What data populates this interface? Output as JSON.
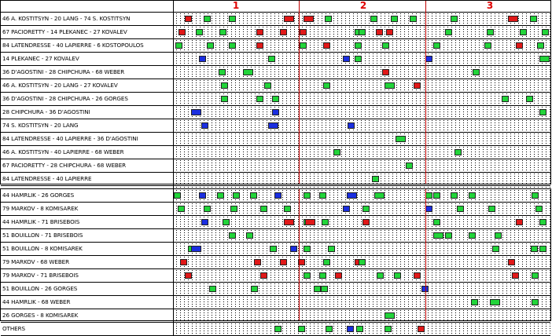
{
  "periods": [
    "1",
    "2",
    "3"
  ],
  "colors": {
    "even": "#22d43a",
    "powerplay": "#e01818",
    "shorthanded": "#1a2ee0",
    "divider": "#c00000"
  },
  "top_panel": {
    "rows": [
      {
        "label": "46 A. KOSTITSYN - 20 LANG - 74 S. KOSTITSYN"
      },
      {
        "label": "67 PACIORETTY - 14 PLEKANEC - 27 KOVALEV"
      },
      {
        "label": "84 LATENDRESSE - 40 LAPIERRE - 6 KOSTOPOULOS"
      },
      {
        "label": "14 PLEKANEC - 27 KOVALEV"
      },
      {
        "label": "36 D'AGOSTINI - 28 CHIPCHURA - 68 WEBER"
      },
      {
        "label": "46 A. KOSTITSYN - 20 LANG - 27 KOVALEV"
      },
      {
        "label": "36 D'AGOSTINI - 28 CHIPCHURA - 26 GORGES"
      },
      {
        "label": "28 CHIPCHURA - 36 D'AGOSTINI"
      },
      {
        "label": "74 S. KOSTITSYN - 20 LANG"
      },
      {
        "label": "84 LATENDRESSE - 40 LAPIERRE - 36 D'AGOSTINI"
      },
      {
        "label": "46 A. KOSTITSYN - 40 LAPIERRE - 68 WEBER"
      },
      {
        "label": "67 PACIORETTY - 28 CHIPCHURA - 68 WEBER"
      },
      {
        "label": "84 LATENDRESSE - 40 LAPIERRE"
      },
      {
        "label": "OTHERS"
      }
    ]
  },
  "bottom_panel": {
    "rows": [
      {
        "label": "44 HAMRLIK - 26 GORGES"
      },
      {
        "label": "79 MARKOV - 8 KOMISAREK"
      },
      {
        "label": "44 HAMRLIK - 71 BRISEBOIS"
      },
      {
        "label": "51 BOUILLON - 71 BRISEBOIS"
      },
      {
        "label": "51 BOUILLON - 8 KOMISAREK"
      },
      {
        "label": "79 MARKOV - 68 WEBER"
      },
      {
        "label": "79 MARKOV - 71 BRISEBOIS"
      },
      {
        "label": "51 BOUILLON - 26 GORGES"
      },
      {
        "label": "44 HAMRLIK - 68 WEBER"
      },
      {
        "label": "26 GORGES - 8 KOMISAREK"
      },
      {
        "label": "OTHERS"
      }
    ]
  }
}
